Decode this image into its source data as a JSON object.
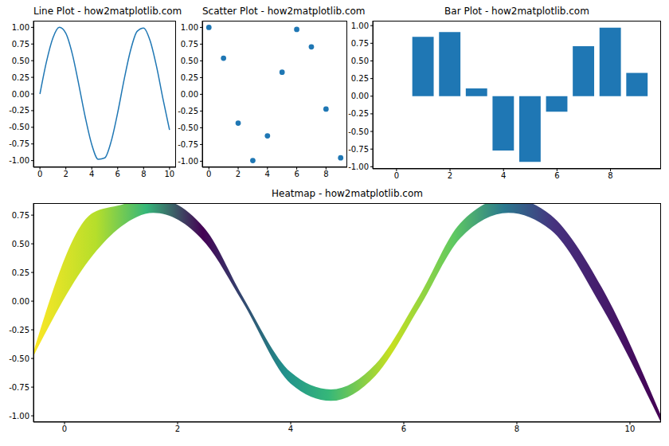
{
  "chart_data": [
    {
      "type": "line",
      "title": "Line Plot - how2matplotlib.com",
      "color": "#1f77b4",
      "x": [
        0,
        0.5,
        1,
        1.5,
        2,
        2.5,
        3,
        3.5,
        4,
        4.5,
        5,
        5.5,
        6,
        6.5,
        7,
        7.5,
        8,
        8.5,
        9,
        9.5,
        10
      ],
      "values": [
        0,
        0.48,
        0.84,
        1.0,
        0.91,
        0.6,
        0.14,
        -0.35,
        -0.76,
        -0.98,
        -0.96,
        -0.71,
        -0.28,
        0.22,
        0.66,
        0.94,
        0.99,
        0.8,
        0.41,
        -0.08,
        -0.54
      ],
      "xlim": [
        -0.5,
        10.5
      ],
      "xticks": [
        0,
        2,
        4,
        6,
        8,
        10
      ],
      "ylim": [
        -1.1,
        1.1
      ],
      "yticks": [
        {
          "value": -1,
          "label": "-1.00"
        },
        -0.75,
        {
          "value": -0.5,
          "label": "-0.50"
        },
        -0.25,
        {
          "value": 0,
          "label": "0.00"
        },
        0.25,
        {
          "value": 0.5,
          "label": "0.50"
        },
        0.75,
        {
          "value": 1,
          "label": "1.00"
        }
      ]
    },
    {
      "type": "scatter",
      "title": "Scatter Plot - how2matplotlib.com",
      "color": "#1f77b4",
      "x": [
        0,
        1,
        2,
        3,
        4,
        5,
        6,
        7,
        8,
        9
      ],
      "values": [
        1.0,
        0.54,
        -0.43,
        -0.99,
        -0.62,
        0.33,
        0.97,
        0.71,
        -0.22,
        -0.95
      ],
      "xlim": [
        -0.45,
        9.45
      ],
      "xticks": [
        0,
        2,
        4,
        6,
        8
      ],
      "ylim": [
        -1.09,
        1.1
      ],
      "yticks": [
        {
          "value": -1,
          "label": "-1.00"
        },
        -0.75,
        {
          "value": -0.5,
          "label": "-0.50"
        },
        -0.25,
        {
          "value": 0,
          "label": "0.00"
        },
        0.25,
        {
          "value": 0.5,
          "label": "0.50"
        },
        0.75,
        {
          "value": 1,
          "label": "1.00"
        }
      ]
    },
    {
      "type": "bar",
      "title": "Bar Plot - how2matplotlib.com",
      "color": "#1f77b4",
      "x": [
        0,
        1,
        2,
        3,
        4,
        5,
        6,
        7,
        8,
        9
      ],
      "values": [
        0,
        0.84,
        0.91,
        0.11,
        -0.77,
        -0.93,
        -0.22,
        0.71,
        0.97,
        0.33
      ],
      "xlim": [
        -0.89,
        9.89
      ],
      "xticks": [
        0,
        2,
        4,
        6,
        8
      ],
      "ylim": [
        -1.03,
        1.07
      ],
      "yticks": [
        {
          "value": -1,
          "label": "-1.00"
        },
        -0.75,
        {
          "value": -0.5,
          "label": "-0.50"
        },
        -0.25,
        {
          "value": 0,
          "label": "0.00"
        },
        0.25,
        {
          "value": 0.5,
          "label": "0.50"
        },
        0.75,
        {
          "value": 1,
          "label": "1.00"
        }
      ]
    },
    {
      "type": "band",
      "title": "Heatmap - how2matplotlib.com",
      "x": [
        -0.55,
        0.5,
        1.0,
        1.57,
        2.5,
        3.14,
        4.0,
        4.71,
        5.5,
        6.28,
        7.0,
        7.85,
        8.6,
        9.5,
        10.55
      ],
      "values": [
        [
          -0.48,
          -0.45
        ],
        [
          0.4,
          0.77
        ],
        [
          0.65,
          0.84
        ],
        [
          0.77,
          0.9
        ],
        [
          0.5,
          0.62
        ],
        [
          0.0,
          0.05
        ],
        [
          -0.72,
          -0.62
        ],
        [
          -0.87,
          -0.77
        ],
        [
          -0.65,
          -0.55
        ],
        [
          -0.05,
          0.05
        ],
        [
          0.55,
          0.68
        ],
        [
          0.77,
          0.9
        ],
        [
          0.62,
          0.75
        ],
        [
          -0.05,
          0.12
        ],
        [
          -1.06,
          -1.0
        ]
      ],
      "xlim": [
        -0.55,
        10.55
      ],
      "xticks": [
        0,
        2,
        4,
        6,
        8,
        10
      ],
      "ylim": [
        -1.055,
        0.855
      ],
      "yticks": [
        {
          "value": -1,
          "label": "-1.00"
        },
        -0.75,
        {
          "value": -0.5,
          "label": "-0.50"
        },
        -0.25,
        {
          "value": 0,
          "label": "0.00"
        },
        0.25,
        {
          "value": 0.5,
          "label": "0.50"
        },
        0.75
      ]
    }
  ]
}
